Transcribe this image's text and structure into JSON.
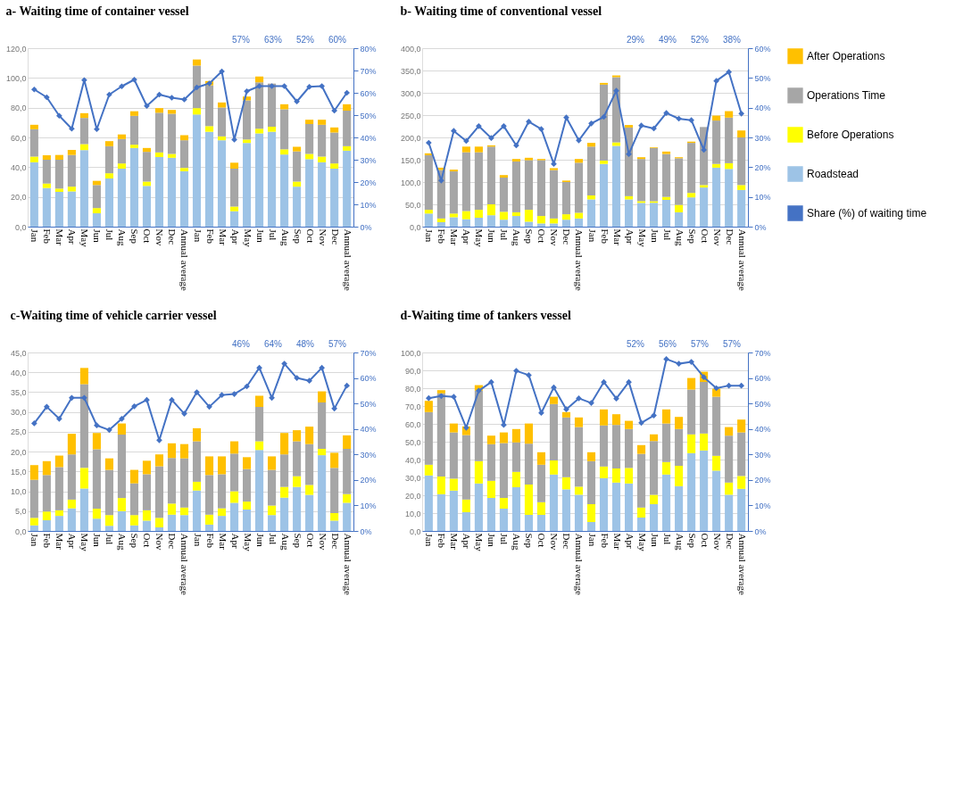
{
  "chart_data": [
    {
      "type": "bar",
      "title": "a- Waiting time of container vessel",
      "stacked": true,
      "grid": "y",
      "marker": "diamond",
      "line_style": "solid",
      "categories": [
        "Jan",
        "Feb",
        "Mar",
        "Apr",
        "May",
        "Jun",
        "Jul",
        "Aug",
        "Sep",
        "Oct",
        "Nov",
        "Dec",
        "Annual average",
        "Jan",
        "Feb",
        "Mar",
        "Apr",
        "May",
        "Jun",
        "Jul",
        "Aug",
        "Sep",
        "Oct",
        "Nov",
        "Dec",
        "Annual average"
      ],
      "ylim": [
        0,
        120
      ],
      "yticks": [
        {
          "value": 0,
          "label": "0,0"
        },
        {
          "value": 20,
          "label": "20,0"
        },
        {
          "value": 40,
          "label": "40,0"
        },
        {
          "value": 60,
          "label": "60,0"
        },
        {
          "value": 80,
          "label": "80,0"
        },
        {
          "value": 100,
          "label": "100,0"
        },
        {
          "value": 120,
          "label": "120,0"
        }
      ],
      "y2lim": [
        0,
        80
      ],
      "y2ticks": [
        {
          "value": 0,
          "label": "0%"
        },
        {
          "value": 10,
          "label": "10%"
        },
        {
          "value": 20,
          "label": "20%"
        },
        {
          "value": 30,
          "label": "30%"
        },
        {
          "value": 40,
          "label": "40%"
        },
        {
          "value": 50,
          "label": "50%"
        },
        {
          "value": 60,
          "label": "60%"
        },
        {
          "value": 70,
          "label": "70%"
        },
        {
          "value": 80,
          "label": "80%"
        }
      ],
      "series": [
        {
          "color": "#9dc3e6",
          "values": [
            43.3,
            26,
            23.4,
            23.7,
            51.5,
            9,
            32.4,
            39,
            52.9,
            27.4,
            46.8,
            46.3,
            37.3,
            75.4,
            63.8,
            58.1,
            10.4,
            56.3,
            62.7,
            63.8,
            48.5,
            26.9,
            45.4,
            43.3,
            39,
            51.1
          ]
        },
        {
          "color": "#ffff00",
          "values": [
            3.8,
            3,
            2.2,
            3.2,
            4,
            3.5,
            3.5,
            3.5,
            2.2,
            2.9,
            3.1,
            2.6,
            2.2,
            4.3,
            3.8,
            2.6,
            3.1,
            2.3,
            3.2,
            3.4,
            3.5,
            3.4,
            3.5,
            3.8,
            3.5,
            3
          ]
        },
        {
          "color": "#a6a6a6",
          "values": [
            18.4,
            16,
            19.4,
            21.3,
            17.6,
            15.5,
            18.2,
            16.4,
            19.4,
            20,
            26.7,
            27,
            18.6,
            28.6,
            27.4,
            19.4,
            25.5,
            26.3,
            31.1,
            29,
            26.9,
            20.3,
            20.1,
            21.4,
            20.8,
            23.9
          ]
        },
        {
          "color": "#ffc000",
          "values": [
            3,
            3,
            3.2,
            3.4,
            3.2,
            2.8,
            3.4,
            3.1,
            3.1,
            2.6,
            3.1,
            2.6,
            3.4,
            4.1,
            2.9,
            3.4,
            4,
            2.6,
            3.9,
            0,
            3.4,
            3.1,
            2.9,
            3.4,
            3.4,
            4.3
          ]
        },
        {
          "type": "line",
          "axis": "y2",
          "color": "#4472c4",
          "values": [
            61.5,
            58,
            49.7,
            43.9,
            65.7,
            43.7,
            59.2,
            62.9,
            65.9,
            54.1,
            59.2,
            57.8,
            57,
            62.4,
            64.2,
            69.6,
            39,
            60.7,
            63,
            63,
            63,
            56.1,
            62.7,
            63,
            52,
            60
          ]
        }
      ],
      "annotations": [
        "57%",
        "63%",
        "52%",
        "60%"
      ]
    },
    {
      "type": "bar",
      "title": "b- Waiting time of conventional vessel",
      "stacked": true,
      "grid": "y",
      "marker": "diamond",
      "line_style": "solid",
      "legend": "right",
      "categories": [
        "Jan",
        "Feb",
        "Mar",
        "Apr",
        "May",
        "Jun",
        "Jul",
        "Aug",
        "Sep",
        "Oct",
        "Nov",
        "Dec",
        "Annual average",
        "Jan",
        "Feb",
        "Mar",
        "Apr",
        "May",
        "Jun",
        "Jul",
        "Aug",
        "Sep",
        "Oct",
        "Nov",
        "Dec",
        "Annual average"
      ],
      "ylim": [
        0,
        400
      ],
      "yticks": [
        {
          "value": 0,
          "label": "0,0"
        },
        {
          "value": 50,
          "label": "50,0"
        },
        {
          "value": 100,
          "label": "100,0"
        },
        {
          "value": 150,
          "label": "150,0"
        },
        {
          "value": 200,
          "label": "200,0"
        },
        {
          "value": 250,
          "label": "250,0"
        },
        {
          "value": 300,
          "label": "300,0"
        },
        {
          "value": 350,
          "label": "350,0"
        },
        {
          "value": 400,
          "label": "400,0"
        }
      ],
      "y2lim": [
        0,
        60
      ],
      "y2ticks": [
        {
          "value": 0,
          "label": "0%"
        },
        {
          "value": 10,
          "label": "10%"
        },
        {
          "value": 20,
          "label": "20%"
        },
        {
          "value": 30,
          "label": "30%"
        },
        {
          "value": 40,
          "label": "40%"
        },
        {
          "value": 50,
          "label": "50%"
        },
        {
          "value": 60,
          "label": "60%"
        }
      ],
      "series": [
        {
          "name": "Roadstead",
          "color": "#9dc3e6",
          "values": [
            29.4,
            10,
            21.1,
            16.7,
            20,
            25.6,
            15.6,
            23.9,
            11.1,
            7.2,
            7.2,
            15.6,
            18.3,
            61.1,
            140.6,
            181.1,
            61.1,
            53.3,
            53.3,
            60,
            32.2,
            65.6,
            87.8,
            132.2,
            129.4,
            82.2
          ]
        },
        {
          "name": "Before Operations",
          "color": "#ffff00",
          "values": [
            8.4,
            8.3,
            8.3,
            18.3,
            17.8,
            24.4,
            17.7,
            8.3,
            26.7,
            16.7,
            11.1,
            12.2,
            12.8,
            8.9,
            7.2,
            7.8,
            7.2,
            3.9,
            3.9,
            6.7,
            16.7,
            10,
            5.5,
            8.4,
            12.8,
            11.1
          ]
        },
        {
          "name": "Operations Time",
          "color": "#a6a6a6",
          "values": [
            122.2,
            108.4,
            94.5,
            131.7,
            128.9,
            129.4,
            76.7,
            113.9,
            111.1,
            125,
            108.4,
            72.2,
            112.2,
            109.4,
            170.5,
            146.1,
            153.9,
            94.5,
            119.5,
            96.1,
            104.4,
            112.2,
            130,
            97.2,
            102.2,
            106.7
          ]
        },
        {
          "name": "After Operations",
          "color": "#ffc000",
          "values": [
            4.4,
            5.5,
            3.9,
            12.7,
            12.7,
            2.8,
            5.6,
            5.6,
            5.5,
            2.8,
            4.4,
            3.3,
            8.4,
            8.4,
            3.9,
            3.9,
            5.6,
            3.9,
            1.1,
            5.5,
            2.3,
            2.8,
            null,
            11.1,
            14.5,
            15.6
          ]
        },
        {
          "name": "Share (%) of waiting time",
          "type": "line",
          "axis": "y2",
          "color": "#4472c4",
          "values": [
            28.2,
            15.5,
            32.2,
            28.8,
            33.8,
            29.8,
            33.8,
            27.3,
            35.3,
            32.8,
            21.1,
            36.7,
            29,
            34.7,
            36.9,
            45.7,
            24.4,
            34,
            33,
            38.2,
            36.3,
            35.8,
            25.8,
            49,
            52,
            38
          ]
        }
      ],
      "annotations": [
        "29%",
        "49%",
        "52%",
        "38%"
      ]
    },
    {
      "type": "bar",
      "title": "c-Waiting time of vehicle carrier vessel",
      "stacked": true,
      "grid": "y",
      "marker": "diamond",
      "line_style": "solid",
      "categories": [
        "Jan",
        "Feb",
        "Mar",
        "Apr",
        "May",
        "Jun",
        "Jul",
        "Aug",
        "Sep",
        "Oct",
        "Nov",
        "Dec",
        "Annual average",
        "Jan",
        "Feb",
        "Mar",
        "Apr",
        "May",
        "Jun",
        "Jul",
        "Aug",
        "Sep",
        "Oct",
        "Nov",
        "Dec",
        "Annual average"
      ],
      "ylim": [
        0,
        45
      ],
      "yticks": [
        {
          "value": 0,
          "label": "0,0"
        },
        {
          "value": 5,
          "label": "5,0"
        },
        {
          "value": 10,
          "label": "10,0"
        },
        {
          "value": 15,
          "label": "15,0"
        },
        {
          "value": 20,
          "label": "20,0"
        },
        {
          "value": 25,
          "label": "25,0"
        },
        {
          "value": 30,
          "label": "30,0"
        },
        {
          "value": 35,
          "label": "35,0"
        },
        {
          "value": 40,
          "label": "40,0"
        },
        {
          "value": 45,
          "label": "45,0"
        }
      ],
      "y2lim": [
        0,
        70
      ],
      "y2ticks": [
        {
          "value": 0,
          "label": "0%"
        },
        {
          "value": 10,
          "label": "10%"
        },
        {
          "value": 20,
          "label": "20%"
        },
        {
          "value": 30,
          "label": "30%"
        },
        {
          "value": 40,
          "label": "40%"
        },
        {
          "value": 50,
          "label": "50%"
        },
        {
          "value": 60,
          "label": "60%"
        },
        {
          "value": 70,
          "label": "70%"
        }
      ],
      "series": [
        {
          "color": "#9dc3e6",
          "values": [
            1.4,
            2.7,
            3.8,
            5.7,
            10.7,
            3.1,
            1.3,
            5,
            1.4,
            2.6,
            0.9,
            4.1,
            4,
            10.2,
            1.6,
            3.8,
            7.1,
            5.4,
            20.4,
            4,
            8.4,
            11.1,
            9.1,
            19.1,
            2.6,
            7.1
          ]
        },
        {
          "color": "#ffff00",
          "values": [
            1.9,
            2.2,
            1.4,
            2.2,
            5.2,
            2.5,
            2.7,
            3.3,
            2.6,
            2.6,
            2.4,
            2.8,
            1.9,
            2.2,
            2.5,
            1.9,
            2.9,
            2,
            2.2,
            2.4,
            2.7,
            2.7,
            2.5,
            1.6,
            1.9,
            2.2
          ]
        },
        {
          "color": "#a6a6a6",
          "values": [
            9.6,
            9.2,
            10.9,
            11.4,
            21.1,
            15,
            11.4,
            16,
            8,
            9.1,
            13,
            11.5,
            12.4,
            10.2,
            10,
            8.6,
            9.5,
            8.2,
            8.7,
            9,
            8.2,
            8.8,
            10.3,
            11.7,
            11.4,
            11.4
          ]
        },
        {
          "color": "#ffc000",
          "values": [
            3.7,
            3.5,
            2.9,
            5.2,
            4.1,
            4.1,
            2.9,
            2.8,
            3.4,
            3.4,
            3,
            3.7,
            3.6,
            3.3,
            4.7,
            4.5,
            3.1,
            3,
            2.8,
            3.4,
            5.4,
            2.8,
            4.4,
            2.8,
            3.8,
            3.4
          ]
        },
        {
          "type": "line",
          "axis": "y2",
          "color": "#4472c4",
          "values": [
            42.2,
            48.7,
            44,
            52.2,
            52.2,
            41.4,
            39.6,
            44,
            48.9,
            51.4,
            35.6,
            51.4,
            46,
            54.4,
            48.7,
            53.3,
            53.7,
            56.7,
            64,
            52.2,
            65.6,
            60,
            58.9,
            64,
            48,
            57
          ]
        }
      ],
      "annotations": [
        "46%",
        "64%",
        "48%",
        "57%"
      ]
    },
    {
      "type": "bar",
      "title": "d-Waiting time of tankers vessel",
      "stacked": true,
      "grid": "y",
      "marker": "diamond",
      "line_style": "solid",
      "categories": [
        "Jan",
        "Feb",
        "Mar",
        "Apr",
        "May",
        "Jun",
        "Jul",
        "Aug",
        "Sep",
        "Oct",
        "Nov",
        "Dec",
        "Annual average",
        "Jan",
        "Feb",
        "Mar",
        "Apr",
        "May",
        "Jun",
        "Jul",
        "Aug",
        "Sep",
        "Oct",
        "Nov",
        "Dec",
        "Annual average"
      ],
      "ylim": [
        0,
        100
      ],
      "yticks": [
        {
          "value": 0,
          "label": "0,0"
        },
        {
          "value": 10,
          "label": "10,0"
        },
        {
          "value": 20,
          "label": "20,0"
        },
        {
          "value": 30,
          "label": "30,0"
        },
        {
          "value": 40,
          "label": "40,0"
        },
        {
          "value": 50,
          "label": "50,0"
        },
        {
          "value": 60,
          "label": "60,0"
        },
        {
          "value": 70,
          "label": "70,0"
        },
        {
          "value": 80,
          "label": "80,0"
        },
        {
          "value": 90,
          "label": "90,0"
        },
        {
          "value": 100,
          "label": "100,0"
        }
      ],
      "y2lim": [
        0,
        70
      ],
      "y2ticks": [
        {
          "value": 0,
          "label": "0%"
        },
        {
          "value": 10,
          "label": "10%"
        },
        {
          "value": 20,
          "label": "20%"
        },
        {
          "value": 30,
          "label": "30%"
        },
        {
          "value": 40,
          "label": "40%"
        },
        {
          "value": 50,
          "label": "50%"
        },
        {
          "value": 60,
          "label": "60%"
        },
        {
          "value": 70,
          "label": "70%"
        }
      ],
      "series": [
        {
          "color": "#9dc3e6",
          "values": [
            31.1,
            20.6,
            22.6,
            10.5,
            26.6,
            18.5,
            12.5,
            24.5,
            9,
            9,
            31.6,
            23.3,
            20.3,
            5,
            29.6,
            27.1,
            26.6,
            7.5,
            15,
            31.6,
            25.1,
            43.6,
            45.1,
            33.8,
            20.3,
            23.6
          ]
        },
        {
          "color": "#ffff00",
          "values": [
            6,
            9.9,
            6.7,
            7.1,
            12.5,
            9.6,
            6,
            8.6,
            17,
            7.1,
            7.9,
            6.8,
            4.5,
            10,
            6.5,
            7.9,
            8.7,
            5.6,
            5.3,
            7,
            11.4,
            10.5,
            9.5,
            8.3,
            6.8,
            7.2
          ]
        },
        {
          "color": "#a6a6a6",
          "values": [
            29.5,
            46.6,
            25.9,
            36.1,
            39.5,
            20.5,
            30.7,
            16.5,
            22.9,
            21,
            31.6,
            33.5,
            33.4,
            24.1,
            23,
            24.4,
            21.8,
            30.1,
            30.1,
            21.6,
            20.6,
            25.1,
            28.9,
            33.1,
            26.3,
            24.4
          ]
        },
        {
          "color": "#ffc000",
          "values": [
            6.3,
            1.8,
            5,
            4.9,
            3.1,
            4.8,
            6,
            7.5,
            11.3,
            7,
            4.1,
            3,
            5.4,
            5,
            9,
            6,
            4.6,
            4.9,
            3.7,
            7.9,
            6.8,
            6.5,
            5.7,
            4.5,
            4.8,
            7.2
          ]
        },
        {
          "type": "line",
          "axis": "y2",
          "color": "#4472c4",
          "values": [
            52.1,
            52.9,
            52.6,
            40.5,
            55,
            58.4,
            41.6,
            62.8,
            61.1,
            46.3,
            56.3,
            47.7,
            52,
            50.2,
            58.4,
            51.9,
            58.4,
            42.4,
            45.3,
            67.4,
            65.6,
            66.3,
            60.3,
            56,
            57,
            57
          ]
        }
      ],
      "annotations": [
        "52%",
        "56%",
        "57%",
        "57%"
      ]
    }
  ]
}
